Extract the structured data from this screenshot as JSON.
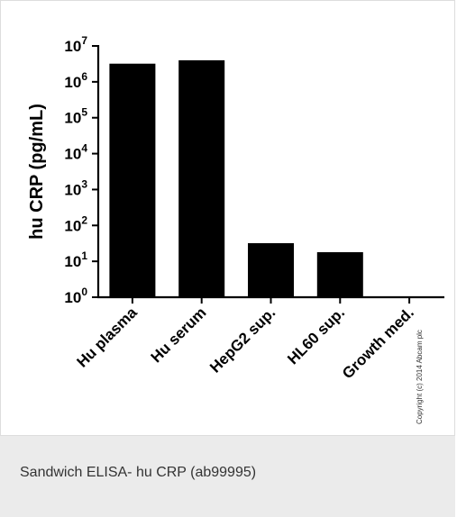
{
  "chart_data": {
    "type": "bar",
    "categories": [
      "Hu plasma",
      "Hu serum",
      "HepG2 sup.",
      "HL60 sup.",
      "Growth med."
    ],
    "values": [
      3200000,
      4000000,
      32,
      18,
      1
    ],
    "ylabel": "hu CRP (pg/mL)",
    "yscale": "log",
    "ylim": [
      1,
      10000000
    ],
    "y_tick_bases": [
      "10",
      "10",
      "10",
      "10",
      "10",
      "10",
      "10",
      "10"
    ],
    "y_tick_exponents": [
      "0",
      "1",
      "2",
      "3",
      "4",
      "5",
      "6",
      "7"
    ],
    "bar_color": "#000000",
    "grid": false
  },
  "copyright": "Copyright (c) 2014 Abcam plc",
  "caption": "Sandwich ELISA- hu CRP (ab99995)"
}
